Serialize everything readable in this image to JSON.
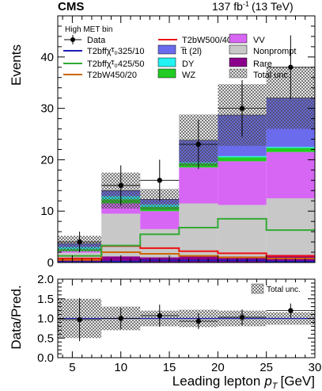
{
  "header": {
    "experiment": "CMS",
    "lumi": "137 fb",
    "lumi_sup": "-1",
    "energy": "(13 TeV)"
  },
  "chart_data": [
    {
      "type": "bar",
      "stacked": true,
      "annotation": "High MET bin",
      "ylabel": "Events",
      "xlabel": "Leading lepton",
      "xlabel_symbol": "p",
      "xlabel_sub": "T",
      "xlabel_unit": "[GeV]",
      "xlim": [
        3.5,
        30
      ],
      "ylim": [
        0,
        48
      ],
      "bin_edges": [
        3.5,
        8,
        12,
        16,
        20,
        25,
        30
      ],
      "xticks": [
        5,
        10,
        15,
        20,
        25,
        30
      ],
      "yticks": [
        0,
        10,
        20,
        30,
        40
      ],
      "stack_series": [
        {
          "name": "Rare",
          "color": "#8b008b",
          "values": [
            0.7,
            1.2,
            1.0,
            1.2,
            1.2,
            1.5
          ]
        },
        {
          "name": "Nonprompt",
          "color": "#c8c8c8",
          "values": [
            1.2,
            8.3,
            5.5,
            10.3,
            10.0,
            11.0
          ]
        },
        {
          "name": "VV",
          "color": "#d766f5",
          "values": [
            0.3,
            2.0,
            3.5,
            7.0,
            8.5,
            9.0
          ]
        },
        {
          "name": "WZ",
          "color": "#22cc22",
          "values": [
            0.4,
            0.8,
            0.8,
            0.8,
            0.8,
            0.8
          ]
        },
        {
          "name": "DY",
          "color": "#22f2f2",
          "values": [
            0.4,
            0.6,
            0.5,
            0.2,
            0.2,
            0.2
          ]
        },
        {
          "name": "t̅t (2l)",
          "color": "#6b6bee",
          "values": [
            0.7,
            1.1,
            1.0,
            4.3,
            8.0,
            9.5
          ]
        }
      ],
      "signals": [
        {
          "name": "T2bW500/40",
          "color": "#ee1111",
          "values": [
            0.8,
            3.2,
            2.8,
            2.2,
            1.8,
            1.3
          ]
        },
        {
          "name": "T2bW450/20",
          "color": "#cc6600",
          "values": [
            0.5,
            2.0,
            1.7,
            1.3,
            1.0,
            0.8
          ]
        },
        {
          "name": "T2bffχ̃¹₀ 425/50",
          "color": "#33aa33",
          "values": [
            1.3,
            3.3,
            5.5,
            6.8,
            8.5,
            6.3
          ]
        },
        {
          "name": "T2bffχ̃¹₀ 325/10",
          "color": "#1e1eb4",
          "values": [
            0.1,
            0.2,
            0.4,
            0.4,
            0.4,
            0.2
          ]
        }
      ],
      "total_unc": [
        1.5,
        3.5,
        2.0,
        5.0,
        6.0,
        6.0
      ],
      "data": {
        "name": "Data",
        "x": [
          5.75,
          10,
          14,
          18,
          22.5,
          27.5
        ],
        "y": [
          4,
          15,
          16,
          23,
          30,
          38
        ],
        "yerr": [
          2.0,
          3.9,
          4.0,
          4.8,
          5.5,
          6.2
        ]
      },
      "legend": {
        "col1": [
          "Data",
          "T2bffχ̃¹₀325/10",
          "T2bffχ̃¹₀425/50",
          "T2bW450/20"
        ],
        "col2": [
          "T2bW500/40",
          "t̅t (2l)",
          "DY",
          "WZ"
        ],
        "col3": [
          "VV",
          "Nonprompt",
          "Rare",
          "Total unc."
        ]
      }
    },
    {
      "type": "scatter",
      "ylabel": "Data/Pred.",
      "xlim": [
        3.5,
        30
      ],
      "ylim": [
        0,
        2.0
      ],
      "xticks": [
        5,
        10,
        15,
        20,
        25,
        30
      ],
      "yticks": [
        0.0,
        0.5,
        1.0,
        1.5,
        2.0
      ],
      "ratio": {
        "x": [
          5.75,
          10,
          14,
          18,
          22.5,
          27.5
        ],
        "y": [
          0.97,
          1.0,
          1.07,
          0.93,
          1.03,
          1.2
        ],
        "yerr": [
          0.55,
          0.27,
          0.28,
          0.2,
          0.2,
          0.18
        ]
      },
      "unc_band": [
        0.5,
        0.3,
        0.2,
        0.22,
        0.2,
        0.16
      ],
      "legend": [
        "Total unc."
      ]
    }
  ]
}
